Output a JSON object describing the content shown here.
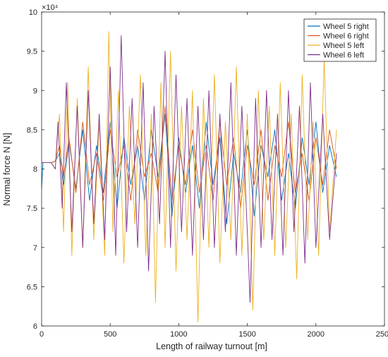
{
  "chart_data": {
    "type": "line",
    "title": "",
    "xlabel": "Length of railway turnout [m]",
    "ylabel": "Normal force N [N]",
    "y_exponent_label": "×10⁴",
    "xlim": [
      0,
      2500
    ],
    "ylim": [
      6,
      10
    ],
    "x_ticks": [
      0,
      500,
      1000,
      1500,
      2000,
      2500
    ],
    "y_ticks": [
      6,
      6.5,
      7,
      7.5,
      8,
      8.5,
      9,
      9.5,
      10
    ],
    "x_tick_labels": [
      "0",
      "500",
      "1000",
      "1500",
      "2000",
      "2500"
    ],
    "y_tick_labels": [
      "6",
      "6.5",
      "7",
      "7.5",
      "8",
      "8.5",
      "9",
      "9.5",
      "10"
    ],
    "y_units_scale": 10000,
    "grid": false,
    "legend_position": "top-right",
    "series": [
      {
        "name": "Wheel 5 right",
        "color": "#0072BD",
        "points": [
          [
            0,
            7.75
          ],
          [
            10,
            8.08
          ],
          [
            40,
            8.08
          ],
          [
            70,
            8.08
          ],
          [
            100,
            8.1
          ],
          [
            130,
            8.2
          ],
          [
            160,
            7.8
          ],
          [
            200,
            8.35
          ],
          [
            250,
            7.75
          ],
          [
            300,
            8.5
          ],
          [
            350,
            7.6
          ],
          [
            400,
            8.3
          ],
          [
            450,
            7.7
          ],
          [
            500,
            8.6
          ],
          [
            550,
            7.5
          ],
          [
            600,
            8.4
          ],
          [
            650,
            7.8
          ],
          [
            700,
            8.3
          ],
          [
            750,
            7.6
          ],
          [
            800,
            8.5
          ],
          [
            850,
            7.9
          ],
          [
            900,
            8.7
          ],
          [
            950,
            7.4
          ],
          [
            1000,
            8.4
          ],
          [
            1050,
            7.7
          ],
          [
            1100,
            8.3
          ],
          [
            1150,
            7.5
          ],
          [
            1200,
            8.6
          ],
          [
            1250,
            7.8
          ],
          [
            1300,
            8.4
          ],
          [
            1350,
            7.3
          ],
          [
            1400,
            8.2
          ],
          [
            1450,
            7.7
          ],
          [
            1500,
            8.5
          ],
          [
            1550,
            7.4
          ],
          [
            1600,
            8.3
          ],
          [
            1650,
            7.9
          ],
          [
            1700,
            8.5
          ],
          [
            1750,
            7.6
          ],
          [
            1800,
            8.2
          ],
          [
            1850,
            7.5
          ],
          [
            1900,
            8.4
          ],
          [
            1950,
            7.8
          ],
          [
            2000,
            8.6
          ],
          [
            2050,
            7.7
          ],
          [
            2100,
            8.3
          ],
          [
            2150,
            7.9
          ]
        ]
      },
      {
        "name": "Wheel 6 right",
        "color": "#D95319",
        "points": [
          [
            0,
            8.08
          ],
          [
            40,
            8.08
          ],
          [
            70,
            8.08
          ],
          [
            100,
            8.1
          ],
          [
            130,
            8.3
          ],
          [
            160,
            7.9
          ],
          [
            200,
            8.4
          ],
          [
            250,
            7.7
          ],
          [
            300,
            8.6
          ],
          [
            350,
            7.8
          ],
          [
            400,
            8.2
          ],
          [
            450,
            7.6
          ],
          [
            500,
            8.5
          ],
          [
            550,
            7.9
          ],
          [
            600,
            8.3
          ],
          [
            650,
            7.6
          ],
          [
            700,
            8.5
          ],
          [
            750,
            7.9
          ],
          [
            800,
            8.2
          ],
          [
            850,
            7.7
          ],
          [
            900,
            8.8
          ],
          [
            950,
            7.6
          ],
          [
            1000,
            8.3
          ],
          [
            1050,
            7.8
          ],
          [
            1100,
            8.5
          ],
          [
            1150,
            7.7
          ],
          [
            1200,
            8.3
          ],
          [
            1250,
            7.6
          ],
          [
            1300,
            8.6
          ],
          [
            1350,
            7.8
          ],
          [
            1400,
            8.4
          ],
          [
            1450,
            7.5
          ],
          [
            1500,
            8.3
          ],
          [
            1550,
            7.8
          ],
          [
            1600,
            8.5
          ],
          [
            1650,
            7.6
          ],
          [
            1700,
            8.3
          ],
          [
            1750,
            7.9
          ],
          [
            1800,
            8.6
          ],
          [
            1850,
            7.7
          ],
          [
            1900,
            8.2
          ],
          [
            1950,
            7.6
          ],
          [
            2000,
            8.4
          ],
          [
            2050,
            7.8
          ],
          [
            2100,
            8.5
          ],
          [
            2150,
            8.0
          ]
        ]
      },
      {
        "name": "Wheel 5 left",
        "color": "#EDB120",
        "points": [
          [
            0,
            8.08
          ],
          [
            40,
            8.08
          ],
          [
            70,
            8.08
          ],
          [
            100,
            8.0
          ],
          [
            130,
            8.7
          ],
          [
            160,
            7.2
          ],
          [
            190,
            9.1
          ],
          [
            220,
            6.9
          ],
          [
            260,
            8.9
          ],
          [
            300,
            7.0
          ],
          [
            340,
            9.3
          ],
          [
            380,
            7.1
          ],
          [
            420,
            8.6
          ],
          [
            460,
            6.9
          ],
          [
            490,
            9.75
          ],
          [
            520,
            7.2
          ],
          [
            560,
            9.0
          ],
          [
            600,
            6.8
          ],
          [
            640,
            8.8
          ],
          [
            680,
            7.3
          ],
          [
            720,
            9.2
          ],
          [
            760,
            6.9
          ],
          [
            800,
            8.7
          ],
          [
            830,
            6.3
          ],
          [
            870,
            9.1
          ],
          [
            900,
            7.0
          ],
          [
            940,
            9.5
          ],
          [
            980,
            6.7
          ],
          [
            1020,
            8.8
          ],
          [
            1060,
            7.1
          ],
          [
            1100,
            9.0
          ],
          [
            1140,
            6.05
          ],
          [
            1180,
            8.9
          ],
          [
            1220,
            7.0
          ],
          [
            1260,
            9.2
          ],
          [
            1300,
            6.8
          ],
          [
            1340,
            8.6
          ],
          [
            1380,
            7.1
          ],
          [
            1420,
            9.3
          ],
          [
            1460,
            6.9
          ],
          [
            1500,
            8.7
          ],
          [
            1540,
            6.2
          ],
          [
            1580,
            9.0
          ],
          [
            1620,
            7.1
          ],
          [
            1660,
            8.8
          ],
          [
            1700,
            6.9
          ],
          [
            1740,
            9.1
          ],
          [
            1780,
            7.0
          ],
          [
            1820,
            8.7
          ],
          [
            1860,
            6.6
          ],
          [
            1900,
            9.2
          ],
          [
            1940,
            7.1
          ],
          [
            1980,
            8.6
          ],
          [
            2020,
            6.9
          ],
          [
            2060,
            9.4
          ],
          [
            2100,
            7.2
          ],
          [
            2150,
            8.5
          ]
        ]
      },
      {
        "name": "Wheel 6 left",
        "color": "#7E2F8E",
        "points": [
          [
            0,
            8.08
          ],
          [
            40,
            8.08
          ],
          [
            70,
            8.08
          ],
          [
            100,
            8.0
          ],
          [
            120,
            8.6
          ],
          [
            150,
            7.5
          ],
          [
            180,
            9.1
          ],
          [
            220,
            7.2
          ],
          [
            260,
            8.8
          ],
          [
            300,
            7.0
          ],
          [
            340,
            9.0
          ],
          [
            380,
            7.3
          ],
          [
            420,
            8.7
          ],
          [
            460,
            7.1
          ],
          [
            500,
            9.3
          ],
          [
            540,
            6.9
          ],
          [
            580,
            9.7
          ],
          [
            620,
            7.2
          ],
          [
            660,
            8.9
          ],
          [
            700,
            7.0
          ],
          [
            740,
            9.1
          ],
          [
            780,
            6.7
          ],
          [
            820,
            8.8
          ],
          [
            860,
            7.3
          ],
          [
            900,
            9.5
          ],
          [
            940,
            7.0
          ],
          [
            980,
            9.2
          ],
          [
            1020,
            7.2
          ],
          [
            1060,
            8.9
          ],
          [
            1100,
            6.9
          ],
          [
            1140,
            8.8
          ],
          [
            1180,
            7.1
          ],
          [
            1220,
            9.0
          ],
          [
            1260,
            7.0
          ],
          [
            1300,
            8.7
          ],
          [
            1340,
            7.2
          ],
          [
            1380,
            9.1
          ],
          [
            1420,
            6.9
          ],
          [
            1460,
            8.8
          ],
          [
            1500,
            7.2
          ],
          [
            1520,
            6.3
          ],
          [
            1560,
            8.9
          ],
          [
            1600,
            7.0
          ],
          [
            1640,
            9.0
          ],
          [
            1680,
            7.1
          ],
          [
            1720,
            8.7
          ],
          [
            1760,
            6.9
          ],
          [
            1800,
            9.0
          ],
          [
            1840,
            7.2
          ],
          [
            1880,
            8.8
          ],
          [
            1920,
            6.8
          ],
          [
            1960,
            9.1
          ],
          [
            2000,
            7.0
          ],
          [
            2050,
            8.7
          ],
          [
            2100,
            7.1
          ],
          [
            2150,
            8.2
          ]
        ]
      }
    ]
  }
}
